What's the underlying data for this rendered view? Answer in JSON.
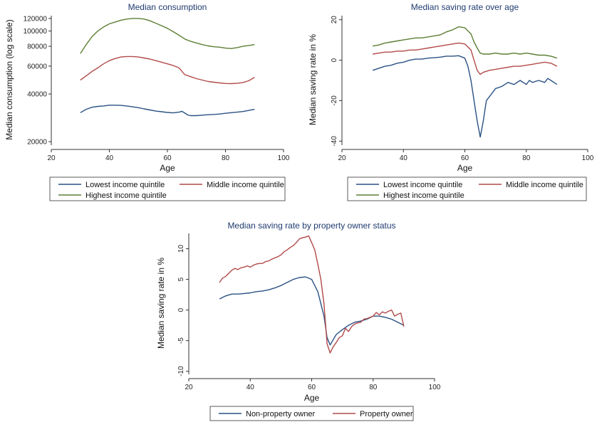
{
  "colors": {
    "lowest": "#2a5183",
    "middle": "#b24a4a",
    "highest": "#5d7e35",
    "non_owner": "#2a5183",
    "owner": "#b24a4a"
  },
  "chart_data": [
    {
      "type": "line",
      "title": "Median consumption",
      "xlabel": "Age",
      "ylabel": "Median consumption (log scale)",
      "yscale": "log",
      "xlim": [
        20,
        100
      ],
      "ylim": [
        19000,
        125000
      ],
      "xticks": [
        20,
        40,
        60,
        80,
        100
      ],
      "yticks": [
        20000,
        40000,
        60000,
        80000,
        100000,
        120000
      ],
      "series": [
        {
          "key": "lowest",
          "name": "Lowest income quintile",
          "x": [
            30,
            32,
            34,
            36,
            38,
            40,
            42,
            44,
            46,
            48,
            50,
            52,
            54,
            56,
            58,
            60,
            62,
            64,
            65,
            66,
            67,
            68,
            70,
            72,
            74,
            76,
            78,
            80,
            82,
            84,
            86,
            88,
            90
          ],
          "values": [
            30500,
            32000,
            33000,
            33400,
            33600,
            34000,
            34000,
            33900,
            33600,
            33200,
            32800,
            32200,
            31700,
            31200,
            30900,
            30600,
            30400,
            30700,
            31100,
            30300,
            29500,
            29200,
            29200,
            29400,
            29600,
            29700,
            29900,
            30200,
            30500,
            30700,
            31000,
            31500,
            32000
          ]
        },
        {
          "key": "middle",
          "name": "Middle income quintile",
          "x": [
            30,
            32,
            34,
            36,
            38,
            40,
            42,
            44,
            46,
            48,
            50,
            52,
            54,
            56,
            58,
            60,
            62,
            64,
            66,
            68,
            70,
            72,
            74,
            76,
            78,
            80,
            82,
            84,
            86,
            88,
            90
          ],
          "values": [
            49000,
            52000,
            55500,
            58500,
            62000,
            65000,
            67000,
            68500,
            69000,
            69000,
            68500,
            67500,
            66500,
            65000,
            63500,
            62000,
            60500,
            58500,
            53000,
            51500,
            50000,
            49000,
            48000,
            47500,
            47000,
            46600,
            46500,
            46700,
            47300,
            48500,
            51000
          ]
        },
        {
          "key": "highest",
          "name": "Highest income quintile",
          "x": [
            30,
            32,
            34,
            36,
            38,
            40,
            42,
            44,
            46,
            48,
            50,
            52,
            54,
            56,
            58,
            60,
            62,
            64,
            66,
            68,
            70,
            72,
            74,
            76,
            78,
            80,
            82,
            84,
            86,
            88,
            90
          ],
          "values": [
            72000,
            82000,
            92000,
            100000,
            106000,
            111000,
            114000,
            117000,
            119000,
            120000,
            120000,
            119000,
            116000,
            112000,
            108000,
            104000,
            99000,
            94000,
            89000,
            86000,
            84000,
            82000,
            80500,
            79500,
            79000,
            78000,
            77500,
            78500,
            80000,
            81000,
            82000
          ]
        }
      ],
      "legend": [
        "Lowest income quintile",
        "Middle income quintile",
        "Highest income quintile"
      ]
    },
    {
      "type": "line",
      "title": "Median saving rate over age",
      "xlabel": "Age",
      "ylabel": "Median saving rate in %",
      "xlim": [
        20,
        100
      ],
      "ylim": [
        -42,
        22
      ],
      "xticks": [
        20,
        40,
        60,
        80,
        100
      ],
      "yticks": [
        -40,
        -20,
        0,
        20
      ],
      "series": [
        {
          "key": "lowest",
          "name": "Lowest income quintile",
          "x": [
            30,
            32,
            34,
            36,
            38,
            40,
            42,
            44,
            46,
            48,
            50,
            52,
            54,
            56,
            58,
            60,
            61,
            62,
            63,
            64,
            65,
            66,
            67,
            68,
            70,
            72,
            74,
            76,
            78,
            80,
            81,
            82,
            84,
            86,
            87,
            88,
            90
          ],
          "values": [
            -5,
            -4,
            -3,
            -2.5,
            -1.5,
            -1,
            0,
            0.5,
            0.5,
            1,
            1.2,
            1.5,
            2,
            2,
            2.2,
            1,
            -3,
            -10,
            -20,
            -30,
            -38,
            -30,
            -20,
            -18,
            -14,
            -13,
            -11,
            -12,
            -10,
            -12,
            -10,
            -11,
            -10,
            -11,
            -9,
            -10,
            -12
          ]
        },
        {
          "key": "middle",
          "name": "Middle income quintile",
          "x": [
            30,
            32,
            34,
            36,
            38,
            40,
            42,
            44,
            46,
            48,
            50,
            52,
            54,
            56,
            58,
            60,
            62,
            63,
            64,
            65,
            66,
            68,
            70,
            72,
            74,
            76,
            78,
            80,
            82,
            84,
            86,
            88,
            90
          ],
          "values": [
            3,
            3.5,
            4,
            4,
            4.5,
            4.5,
            5,
            5,
            5.5,
            6,
            6.5,
            7,
            7.5,
            8,
            8.5,
            8,
            5,
            0,
            -5,
            -7,
            -6,
            -5,
            -4.5,
            -4,
            -3.5,
            -3,
            -3,
            -2.5,
            -2,
            -1.5,
            -1,
            -1.5,
            -3
          ]
        },
        {
          "key": "highest",
          "name": "Highest income quintile",
          "x": [
            30,
            32,
            34,
            36,
            38,
            40,
            42,
            44,
            46,
            48,
            50,
            52,
            54,
            56,
            58,
            60,
            62,
            63,
            64,
            65,
            66,
            68,
            70,
            72,
            74,
            76,
            78,
            80,
            82,
            84,
            86,
            88,
            90
          ],
          "values": [
            7,
            7.5,
            8.5,
            9,
            9.5,
            10,
            10.5,
            11,
            11,
            11.5,
            12,
            12.5,
            14,
            15,
            16.5,
            16,
            13,
            9,
            6,
            3.5,
            3,
            3,
            3.5,
            3,
            3,
            3.5,
            3,
            3.5,
            3,
            2.5,
            2.5,
            2,
            1
          ]
        }
      ],
      "legend": [
        "Lowest income quintile",
        "Middle income quintile",
        "Highest income quintile"
      ]
    },
    {
      "type": "line",
      "title": "Median saving rate by property owner status",
      "xlabel": "Age",
      "ylabel": "Median saving rate in %",
      "xlim": [
        20,
        100
      ],
      "ylim": [
        -10.5,
        12.5
      ],
      "xticks": [
        20,
        40,
        60,
        80,
        100
      ],
      "yticks": [
        -10,
        -5,
        0,
        5,
        10
      ],
      "series": [
        {
          "key": "non_owner",
          "name": "Non-property owner",
          "x": [
            30,
            32,
            34,
            36,
            38,
            40,
            42,
            44,
            46,
            48,
            50,
            52,
            54,
            56,
            58,
            60,
            62,
            64,
            65,
            66,
            68,
            70,
            72,
            74,
            76,
            78,
            80,
            82,
            84,
            86,
            88,
            90
          ],
          "values": [
            1.8,
            2.3,
            2.6,
            2.6,
            2.7,
            2.8,
            3,
            3.1,
            3.3,
            3.6,
            4,
            4.5,
            5,
            5.3,
            5.4,
            5,
            3,
            -1,
            -4.5,
            -5.7,
            -4,
            -3.2,
            -2.5,
            -2,
            -1.8,
            -1.5,
            -1,
            -1,
            -1.2,
            -1.5,
            -2,
            -2.5
          ]
        },
        {
          "key": "owner",
          "name": "Property owner",
          "x": [
            30,
            31,
            32,
            33,
            34,
            35,
            36,
            37,
            38,
            39,
            40,
            41,
            42,
            43,
            44,
            45,
            46,
            47,
            48,
            49,
            50,
            51,
            52,
            53,
            54,
            55,
            56,
            57,
            58,
            59,
            60,
            61,
            62,
            63,
            64,
            65,
            66,
            67,
            68,
            69,
            70,
            71,
            72,
            73,
            74,
            75,
            76,
            77,
            78,
            79,
            80,
            81,
            82,
            83,
            84,
            85,
            86,
            87,
            88,
            89,
            90
          ],
          "values": [
            4.5,
            5.2,
            5.5,
            6,
            6.5,
            6.8,
            6.6,
            6.9,
            7,
            7.2,
            7,
            7.3,
            7.5,
            7.6,
            7.6,
            7.9,
            8,
            8.3,
            8.5,
            8.7,
            9,
            9.5,
            9.8,
            10.2,
            10.5,
            11,
            11.6,
            11.8,
            11.9,
            12.1,
            11,
            9.8,
            7.5,
            5,
            1,
            -5.5,
            -7,
            -6,
            -5.3,
            -4.5,
            -4.2,
            -3,
            -3.5,
            -2.7,
            -2.3,
            -2.1,
            -2,
            -1.5,
            -1.4,
            -1.2,
            -1,
            -0.4,
            -0.8,
            -0.3,
            -0.5,
            -0.2,
            0,
            -1,
            -0.7,
            -0.5,
            -2.7
          ]
        }
      ],
      "legend": [
        "Non-property owner",
        "Property owner"
      ]
    }
  ]
}
